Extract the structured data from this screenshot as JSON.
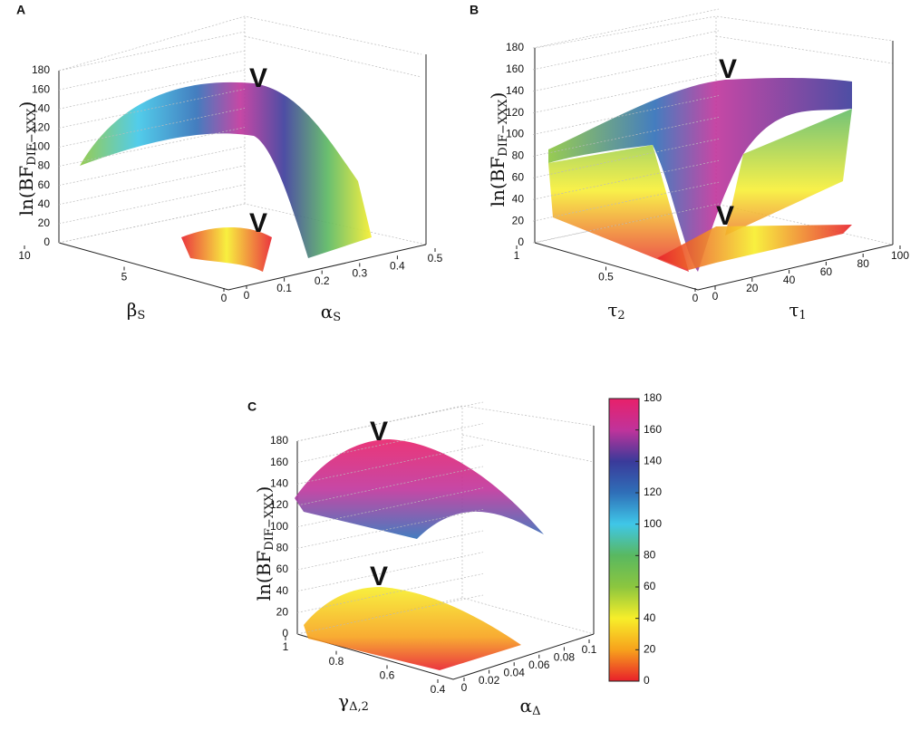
{
  "chart_data": [
    {
      "type": "surface3d",
      "panel": "A",
      "zlabel": {
        "main": "ln(BF",
        "sub": "DIF−XXX",
        "close": ")"
      },
      "xlabel": {
        "main": "β",
        "sub": "S"
      },
      "ylabel": {
        "main": "α",
        "sub": "S"
      },
      "zlim": [
        0,
        180
      ],
      "zticks": [
        0,
        20,
        40,
        60,
        80,
        100,
        120,
        140,
        160,
        180
      ],
      "xlim": [
        0,
        10
      ],
      "xticks": [
        0,
        5,
        10
      ],
      "ylim": [
        0,
        0.5
      ],
      "yticks": [
        0,
        0.1,
        0.2,
        0.3,
        0.4,
        0.5
      ],
      "markers": [
        "V",
        "V"
      ],
      "grid": true
    },
    {
      "type": "surface3d",
      "panel": "B",
      "zlabel": {
        "main": "ln(BF",
        "sub": "DIF−XXX",
        "close": ")"
      },
      "xlabel": {
        "main": "τ",
        "sub": "2"
      },
      "ylabel": {
        "main": "τ",
        "sub": "1"
      },
      "zlim": [
        0,
        180
      ],
      "zticks": [
        0,
        20,
        40,
        60,
        80,
        100,
        120,
        140,
        160,
        180
      ],
      "xlim": [
        0,
        1
      ],
      "xticks": [
        0,
        0.5,
        1
      ],
      "ylim": [
        0,
        100
      ],
      "yticks": [
        0,
        20,
        40,
        60,
        80,
        100
      ],
      "markers": [
        "V",
        "V"
      ],
      "grid": true
    },
    {
      "type": "surface3d",
      "panel": "C",
      "zlabel": {
        "main": "ln(BF",
        "sub": "DIF−XXX",
        "close": ")"
      },
      "xlabel": {
        "main": "γ",
        "sub": "Δ,2"
      },
      "ylabel": {
        "main": "α",
        "sub": "Δ"
      },
      "zlim": [
        0,
        180
      ],
      "zticks": [
        0,
        20,
        40,
        60,
        80,
        100,
        120,
        140,
        160,
        180
      ],
      "xlim": [
        0.4,
        1
      ],
      "xticks": [
        0.4,
        0.6,
        0.8,
        1
      ],
      "ylim": [
        0,
        0.1
      ],
      "yticks": [
        0,
        0.02,
        0.04,
        0.06,
        0.08,
        0.1
      ],
      "markers": [
        "V",
        "V"
      ],
      "grid": true
    },
    {
      "type": "colorbar",
      "clim": [
        0,
        180
      ],
      "cticks": [
        0,
        20,
        40,
        60,
        80,
        100,
        120,
        140,
        160,
        180
      ],
      "colormap": [
        "#e8202a",
        "#f7a21c",
        "#f7ee2a",
        "#8cc63f",
        "#59b860",
        "#3fc7e8",
        "#2f6fb8",
        "#3a3a9a",
        "#c0339b",
        "#e8206a"
      ]
    }
  ]
}
